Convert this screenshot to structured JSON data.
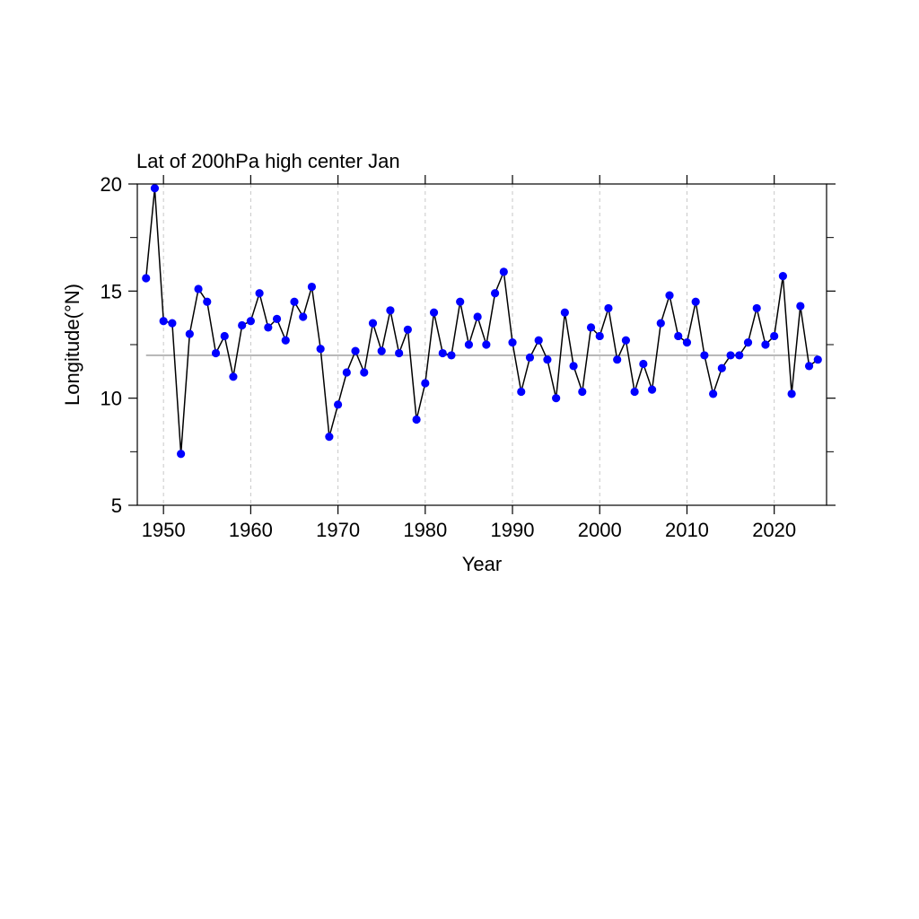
{
  "chart_data": {
    "type": "line",
    "title": "Lat of 200hPa high center Jan",
    "xlabel": "Year",
    "ylabel": "Longitude(°N)",
    "xlim": [
      1947,
      2026
    ],
    "ylim": [
      5,
      20
    ],
    "x_ticks": [
      1950,
      1960,
      1970,
      1980,
      1990,
      2000,
      2010,
      2020
    ],
    "y_ticks": [
      5,
      10,
      15,
      20
    ],
    "y_minor_ticks": [
      7.5,
      12.5,
      17.5
    ],
    "grid": "vertical dashed at major x ticks",
    "reference_line": 12.0,
    "colors": {
      "line": "#000000",
      "marker": "#0000ff",
      "reference": "#808080",
      "grid": "#c8c8c8"
    },
    "series": [
      {
        "x": [
          1948,
          1949,
          1950,
          1951,
          1952,
          1953,
          1954,
          1955,
          1956,
          1957,
          1958,
          1959,
          1960,
          1961,
          1962,
          1963,
          1964,
          1965,
          1966,
          1967,
          1968,
          1969,
          1970,
          1971,
          1972,
          1973,
          1974,
          1975,
          1976,
          1977,
          1978,
          1979,
          1980,
          1981,
          1982,
          1983,
          1984,
          1985,
          1986,
          1987,
          1988,
          1989,
          1990,
          1991,
          1992,
          1993,
          1994,
          1995,
          1996,
          1997,
          1998,
          1999,
          2000,
          2001,
          2002,
          2003,
          2004,
          2005,
          2006,
          2007,
          2008,
          2009,
          2010,
          2011,
          2012,
          2013,
          2014,
          2015,
          2016,
          2017,
          2018,
          2019,
          2020,
          2021,
          2022,
          2023,
          2024,
          2025
        ],
        "y": [
          15.6,
          19.8,
          13.6,
          13.5,
          7.4,
          13.0,
          15.1,
          14.5,
          12.1,
          12.9,
          11.0,
          13.4,
          13.6,
          14.9,
          13.3,
          13.7,
          12.7,
          14.5,
          13.8,
          15.2,
          12.3,
          8.2,
          9.7,
          11.2,
          12.2,
          11.2,
          13.5,
          12.2,
          14.1,
          12.1,
          13.2,
          9.0,
          10.7,
          14.0,
          12.1,
          12.0,
          14.5,
          12.5,
          13.8,
          12.5,
          14.9,
          15.9,
          12.6,
          10.3,
          11.9,
          12.7,
          11.8,
          10.0,
          14.0,
          11.5,
          10.3,
          13.3,
          12.9,
          14.2,
          11.8,
          12.7,
          10.3,
          11.6,
          10.4,
          13.5,
          14.8,
          12.9,
          12.6,
          14.5,
          12.0,
          10.2,
          11.4,
          12.0,
          12.0,
          12.6,
          14.2,
          12.5,
          12.9,
          15.7,
          10.2,
          14.3,
          11.5,
          11.8
        ]
      }
    ]
  }
}
